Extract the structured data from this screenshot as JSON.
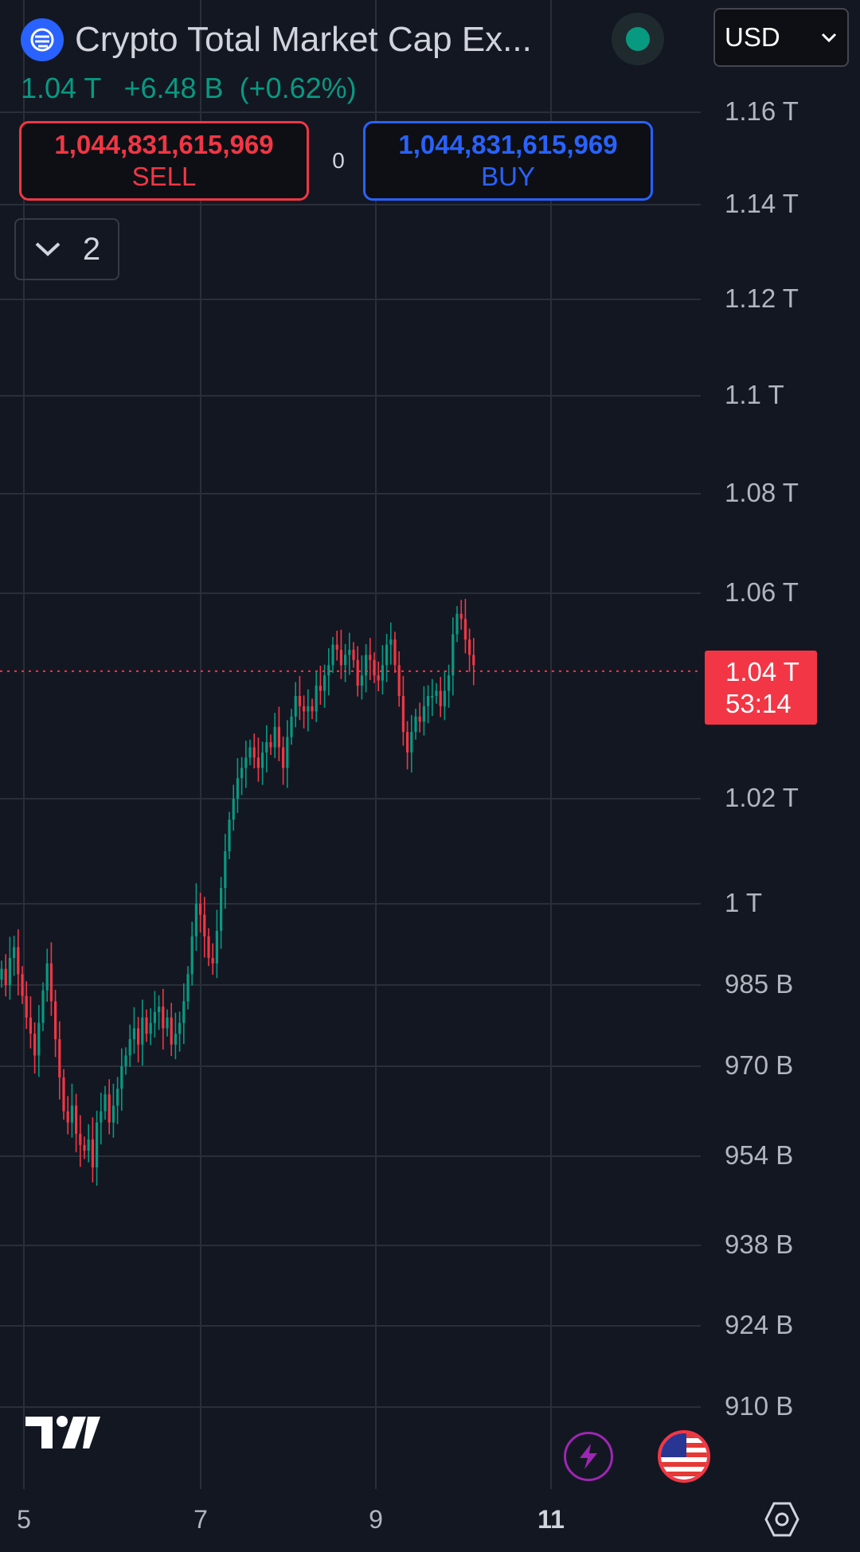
{
  "header": {
    "title": "Crypto Total Market Cap Ex...",
    "currency": "USD",
    "last_price": "1.04 T",
    "change": "+6.48 B",
    "change_percent": "(+0.62%)"
  },
  "trade": {
    "sell_price": "1,044,831,615,969",
    "sell_label": "SELL",
    "buy_price": "1,044,831,615,969",
    "buy_label": "BUY",
    "spread": "0"
  },
  "indicators": {
    "count": "2"
  },
  "price_tag": {
    "price": "1.04 T",
    "countdown": "53:14"
  },
  "icons": {
    "logo": "crypto-logo-icon",
    "dropdown": "chevron-down-icon",
    "collapse": "chevron-down-icon",
    "status": "market-status-dot",
    "tv": "tradingview-logo",
    "bolt": "lightning-icon",
    "flag": "us-flag-icon",
    "settings": "hexagon-settings-icon"
  },
  "colors": {
    "background": "#131722",
    "up": "#089981",
    "down": "#f23645",
    "buy": "#2962ff",
    "grid": "#2a2e39"
  },
  "chart_data": {
    "type": "candlestick",
    "y_axis": {
      "ticks": [
        {
          "label": "1.16 T",
          "value": 1160
        },
        {
          "label": "1.14 T",
          "value": 1140
        },
        {
          "label": "1.12 T",
          "value": 1120
        },
        {
          "label": "1.1 T",
          "value": 1100
        },
        {
          "label": "1.08 T",
          "value": 1080
        },
        {
          "label": "1.06 T",
          "value": 1060
        },
        {
          "label": "1.02 T",
          "value": 1020
        },
        {
          "label": "1 T",
          "value": 1000
        },
        {
          "label": "985 B",
          "value": 985
        },
        {
          "label": "970 B",
          "value": 970
        },
        {
          "label": "954 B",
          "value": 954
        },
        {
          "label": "938 B",
          "value": 938
        },
        {
          "label": "924 B",
          "value": 924
        },
        {
          "label": "910 B",
          "value": 910
        }
      ],
      "unit_note": "values in billions USD"
    },
    "x_axis": {
      "ticks": [
        "5",
        "7",
        "9",
        "11"
      ],
      "bold_tick": "11"
    },
    "current_price": 1044.83,
    "grid": true,
    "close_series": [
      988,
      985,
      990,
      992,
      987,
      983,
      979,
      976,
      972,
      978,
      984,
      989,
      982,
      975,
      968,
      962,
      960,
      963,
      958,
      956,
      955,
      957,
      952,
      960,
      962,
      965,
      960,
      963,
      966,
      970,
      972,
      975,
      977,
      974,
      979,
      976,
      978,
      980,
      981,
      977,
      979,
      974,
      976,
      978,
      982,
      987,
      994,
      1000,
      998,
      994,
      990,
      989,
      995,
      1003,
      1010,
      1016,
      1020,
      1024,
      1026,
      1028,
      1030,
      1028,
      1026,
      1029,
      1031,
      1030,
      1034,
      1030,
      1026,
      1032,
      1036,
      1040,
      1038,
      1037,
      1038,
      1037,
      1042,
      1041,
      1044,
      1046,
      1050,
      1049,
      1046,
      1048,
      1049,
      1047,
      1042,
      1044,
      1048,
      1047,
      1044,
      1043,
      1046,
      1050,
      1051,
      1046,
      1040,
      1033,
      1029,
      1033,
      1036,
      1035,
      1038,
      1040,
      1040,
      1041,
      1038,
      1041,
      1044,
      1052,
      1056,
      1055,
      1051,
      1048,
      1046
    ]
  }
}
